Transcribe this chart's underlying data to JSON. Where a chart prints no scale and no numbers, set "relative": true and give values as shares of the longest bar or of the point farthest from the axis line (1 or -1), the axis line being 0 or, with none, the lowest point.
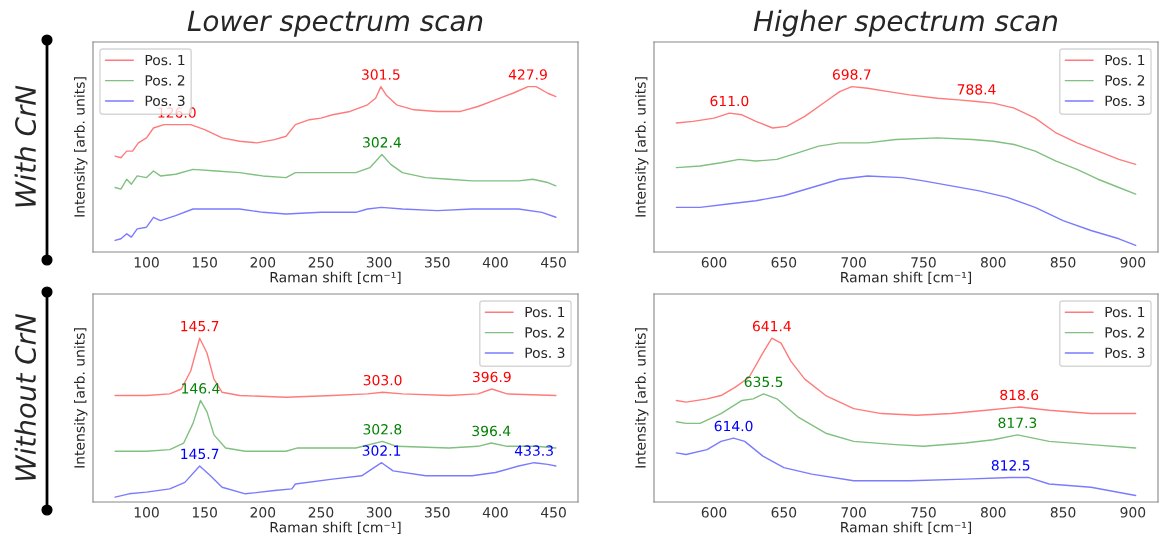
{
  "chart_data": [
    {
      "type": "line",
      "title": "Lower spectrum scan",
      "xlabel": "Raman shift [cm⁻¹]",
      "ylabel": "Intensity [arb. units]",
      "relative": true,
      "xlim": [
        54,
        471
      ],
      "xticks": [
        100,
        150,
        200,
        250,
        300,
        350,
        400,
        450
      ],
      "tick_labels": "x",
      "legend": "top left",
      "grid": false,
      "series": [
        {
          "name": "Pos. 1",
          "color": "#ff7b7b",
          "x": [
            73,
            78,
            83,
            88,
            93,
            100,
            106,
            115,
            126,
            138,
            150,
            165,
            180,
            195,
            210,
            220,
            228,
            240,
            250,
            260,
            275,
            290,
            297,
            301.5,
            306,
            315,
            330,
            350,
            370,
            385,
            400,
            415,
            428,
            435,
            445,
            452
          ],
          "values": [
            0.58,
            0.57,
            0.61,
            0.61,
            0.66,
            0.69,
            0.75,
            0.77,
            0.77,
            0.77,
            0.74,
            0.69,
            0.67,
            0.66,
            0.68,
            0.7,
            0.77,
            0.8,
            0.81,
            0.83,
            0.85,
            0.89,
            0.93,
            1.0,
            0.95,
            0.89,
            0.86,
            0.85,
            0.85,
            0.88,
            0.92,
            0.96,
            1.0,
            1.0,
            0.96,
            0.94
          ]
        },
        {
          "name": "Pos. 2",
          "color": "#80c080",
          "x": [
            73,
            78,
            83,
            87,
            92,
            100,
            106,
            112,
            125,
            140,
            160,
            180,
            200,
            220,
            228,
            240,
            260,
            280,
            292,
            302.4,
            310,
            320,
            340,
            360,
            380,
            400,
            420,
            432,
            445,
            452
          ],
          "values": [
            0.39,
            0.38,
            0.44,
            0.41,
            0.46,
            0.45,
            0.49,
            0.46,
            0.47,
            0.5,
            0.49,
            0.48,
            0.46,
            0.45,
            0.48,
            0.48,
            0.48,
            0.48,
            0.51,
            0.59,
            0.53,
            0.48,
            0.45,
            0.44,
            0.43,
            0.43,
            0.43,
            0.44,
            0.42,
            0.4
          ]
        },
        {
          "name": "Pos. 3",
          "color": "#7b7bff",
          "x": [
            73,
            78,
            83,
            87,
            92,
            100,
            106,
            112,
            125,
            140,
            160,
            180,
            200,
            220,
            250,
            280,
            290,
            302,
            320,
            350,
            380,
            400,
            420,
            440,
            452
          ],
          "values": [
            0.07,
            0.08,
            0.11,
            0.09,
            0.14,
            0.15,
            0.21,
            0.19,
            0.22,
            0.26,
            0.26,
            0.26,
            0.24,
            0.23,
            0.24,
            0.24,
            0.26,
            0.27,
            0.26,
            0.25,
            0.26,
            0.26,
            0.26,
            0.24,
            0.21
          ]
        }
      ],
      "annotations": [
        {
          "text": "126.0",
          "x": 126,
          "y": 0.77
        },
        {
          "text": "301.5",
          "x": 301.5,
          "y": 1.0
        },
        {
          "text": "427.9",
          "x": 428,
          "y": 1.0
        },
        {
          "text": "302.4",
          "x": 302.4,
          "y": 0.59
        },
        "With CrN"
      ]
    },
    {
      "type": "line",
      "title": "Higher spectrum scan",
      "xlabel": "Raman shift [cm⁻¹]",
      "ylabel": "Intensity [arb. units]",
      "relative": true,
      "xlim": [
        557,
        918
      ],
      "xticks": [
        600,
        650,
        700,
        750,
        800,
        850,
        900
      ],
      "tick_labels": "x",
      "legend": "top right",
      "grid": false,
      "series": [
        {
          "name": "Pos. 1",
          "color": "#ff7b7b",
          "x": [
            573,
            585,
            600,
            611,
            620,
            630,
            642,
            652,
            665,
            680,
            690,
            698.7,
            710,
            725,
            740,
            760,
            775,
            788,
            800,
            815,
            830,
            845,
            860,
            875,
            890,
            902
          ],
          "values": [
            0.78,
            0.79,
            0.81,
            0.84,
            0.83,
            0.79,
            0.75,
            0.76,
            0.82,
            0.91,
            0.97,
            1.0,
            0.99,
            0.97,
            0.95,
            0.93,
            0.92,
            0.91,
            0.9,
            0.87,
            0.81,
            0.72,
            0.66,
            0.61,
            0.56,
            0.53
          ]
        },
        {
          "name": "Pos. 2",
          "color": "#80c080",
          "x": [
            573,
            590,
            605,
            618,
            630,
            645,
            660,
            675,
            690,
            710,
            730,
            760,
            785,
            800,
            815,
            830,
            845,
            860,
            875,
            890,
            902
          ],
          "values": [
            0.51,
            0.52,
            0.54,
            0.56,
            0.55,
            0.56,
            0.6,
            0.64,
            0.66,
            0.66,
            0.68,
            0.69,
            0.68,
            0.67,
            0.65,
            0.61,
            0.55,
            0.5,
            0.44,
            0.39,
            0.35
          ]
        },
        {
          "name": "Pos. 3",
          "color": "#7b7bff",
          "x": [
            573,
            590,
            610,
            630,
            650,
            670,
            690,
            710,
            735,
            750,
            770,
            790,
            810,
            830,
            850,
            870,
            890,
            902
          ],
          "values": [
            0.27,
            0.27,
            0.29,
            0.31,
            0.34,
            0.39,
            0.44,
            0.46,
            0.45,
            0.43,
            0.4,
            0.37,
            0.33,
            0.27,
            0.19,
            0.13,
            0.08,
            0.04
          ]
        }
      ],
      "annotations": [
        {
          "text": "611.0",
          "x": 611,
          "y": 0.84
        },
        {
          "text": "698.7",
          "x": 698.7,
          "y": 1.0
        },
        {
          "text": "788.4",
          "x": 788,
          "y": 0.91
        }
      ]
    },
    {
      "type": "line",
      "xlabel": "Raman shift [cm⁻¹]",
      "ylabel": "Intensity [arb. units]",
      "relative": true,
      "xlim": [
        54,
        471
      ],
      "xticks": [
        100,
        150,
        200,
        250,
        300,
        350,
        400,
        450
      ],
      "tick_labels": "x",
      "legend": "top right",
      "grid": false,
      "series": [
        {
          "name": "Pos. 1",
          "color": "#ff7b7b",
          "x": [
            73,
            100,
            120,
            130,
            138,
            145.7,
            152,
            158,
            165,
            180,
            220,
            260,
            290,
            303,
            320,
            360,
            385,
            396.9,
            410,
            452
          ],
          "values": [
            0.65,
            0.65,
            0.66,
            0.69,
            0.8,
            1.0,
            0.91,
            0.75,
            0.67,
            0.65,
            0.64,
            0.65,
            0.66,
            0.67,
            0.66,
            0.65,
            0.66,
            0.69,
            0.66,
            0.65
          ]
        },
        {
          "name": "Pos. 2",
          "color": "#80c080",
          "x": [
            73,
            100,
            120,
            132,
            140,
            146.4,
            152,
            158,
            168,
            185,
            220,
            230,
            280,
            302.8,
            315,
            360,
            385,
            396.4,
            410,
            435,
            452
          ],
          "values": [
            0.31,
            0.31,
            0.32,
            0.36,
            0.48,
            0.62,
            0.55,
            0.41,
            0.33,
            0.31,
            0.31,
            0.33,
            0.33,
            0.37,
            0.34,
            0.33,
            0.34,
            0.36,
            0.34,
            0.34,
            0.33
          ]
        },
        {
          "name": "Pos. 3",
          "color": "#7b7bff",
          "x": [
            73,
            85,
            100,
            120,
            133,
            145.7,
            155,
            165,
            185,
            210,
            225,
            228,
            260,
            285,
            302.1,
            312,
            340,
            370,
            380,
            400,
            420,
            433.3,
            445,
            452
          ],
          "values": [
            0.03,
            0.05,
            0.06,
            0.08,
            0.12,
            0.22,
            0.16,
            0.09,
            0.05,
            0.07,
            0.08,
            0.11,
            0.14,
            0.16,
            0.24,
            0.19,
            0.16,
            0.16,
            0.16,
            0.18,
            0.22,
            0.24,
            0.23,
            0.22
          ]
        }
      ],
      "annotations": [
        {
          "text": "145.7",
          "x": 145.7,
          "y": 1.0
        },
        {
          "text": "303.0",
          "x": 303,
          "y": 0.67
        },
        {
          "text": "396.9",
          "x": 396.9,
          "y": 0.69
        },
        {
          "text": "146.4",
          "x": 146.4,
          "y": 0.62
        },
        {
          "text": "302.8",
          "x": 302.8,
          "y": 0.37
        },
        {
          "text": "396.4",
          "x": 396.4,
          "y": 0.36
        },
        {
          "text": "145.7",
          "x": 145.7,
          "y": 0.22
        },
        {
          "text": "302.1",
          "x": 302.1,
          "y": 0.24
        },
        {
          "text": "433.3",
          "x": 433.3,
          "y": 0.24
        },
        "Without CrN"
      ]
    },
    {
      "type": "line",
      "xlabel": "Raman shift [cm⁻¹]",
      "ylabel": "Intensity [arb. units]",
      "relative": true,
      "xlim": [
        557,
        918
      ],
      "xticks": [
        600,
        650,
        700,
        750,
        800,
        850,
        900
      ],
      "tick_labels": "x",
      "legend": "top right",
      "grid": false,
      "series": [
        {
          "name": "Pos. 1",
          "color": "#ff7b7b",
          "x": [
            573,
            580,
            595,
            605,
            615,
            625,
            635,
            641.4,
            648,
            655,
            665,
            680,
            700,
            720,
            745,
            770,
            795,
            818.6,
            840,
            870,
            902
          ],
          "values": [
            0.62,
            0.61,
            0.63,
            0.65,
            0.7,
            0.76,
            0.91,
            1.0,
            0.97,
            0.86,
            0.75,
            0.65,
            0.57,
            0.54,
            0.53,
            0.54,
            0.56,
            0.58,
            0.56,
            0.54,
            0.54
          ]
        },
        {
          "name": "Pos. 2",
          "color": "#80c080",
          "x": [
            573,
            580,
            590,
            605,
            620,
            628,
            635.5,
            645,
            660,
            680,
            700,
            730,
            750,
            780,
            800,
            817.3,
            840,
            870,
            902
          ],
          "values": [
            0.49,
            0.48,
            0.48,
            0.54,
            0.62,
            0.63,
            0.66,
            0.63,
            0.52,
            0.42,
            0.37,
            0.35,
            0.34,
            0.36,
            0.38,
            0.41,
            0.37,
            0.35,
            0.33
          ]
        },
        {
          "name": "Pos. 3",
          "color": "#7b7bff",
          "x": [
            573,
            580,
            595,
            605,
            614,
            622,
            635,
            650,
            670,
            700,
            740,
            780,
            812.5,
            825,
            840,
            870,
            902
          ],
          "values": [
            0.3,
            0.29,
            0.32,
            0.37,
            0.39,
            0.37,
            0.28,
            0.21,
            0.17,
            0.13,
            0.13,
            0.14,
            0.15,
            0.15,
            0.11,
            0.09,
            0.04
          ]
        }
      ],
      "annotations": [
        {
          "text": "641.4",
          "x": 641.4,
          "y": 1.0
        },
        {
          "text": "818.6",
          "x": 818.6,
          "y": 0.58
        },
        {
          "text": "635.5",
          "x": 635.5,
          "y": 0.66
        },
        {
          "text": "817.3",
          "x": 817.3,
          "y": 0.41
        },
        {
          "text": "614.0",
          "x": 614,
          "y": 0.39
        },
        {
          "text": "812.5",
          "x": 812.5,
          "y": 0.15
        }
      ]
    }
  ]
}
